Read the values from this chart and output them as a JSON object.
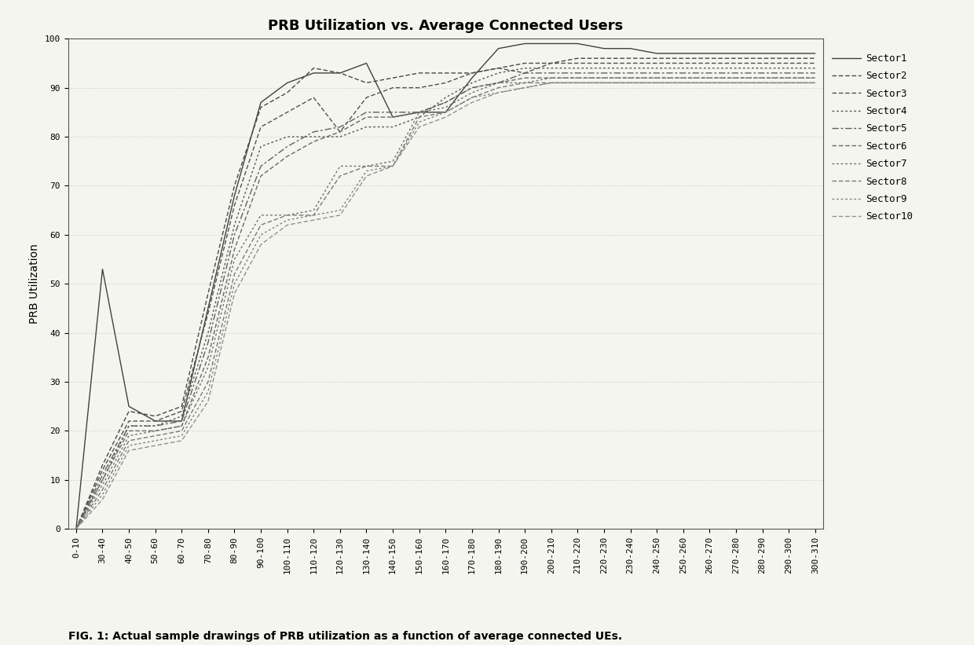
{
  "title": "PRB Utilization vs. Average Connected Users",
  "ylabel": "PRB Utilization",
  "caption": "FIG. 1: Actual sample drawings of PRB utilization as a function of average connected UEs.",
  "x_labels": [
    "0-10",
    "30-40",
    "40-50",
    "50-60",
    "60-70",
    "70-80",
    "80-90",
    "90-100",
    "100-110",
    "110-120",
    "120-130",
    "130-140",
    "140-150",
    "150-160",
    "160-170",
    "170-180",
    "180-190",
    "190-200",
    "200-210",
    "210-220",
    "220-230",
    "230-240",
    "240-250",
    "250-260",
    "260-270",
    "270-280",
    "280-290",
    "290-300",
    "300-310"
  ],
  "ylim": [
    0,
    100
  ],
  "legend_labels": [
    "Sector1",
    "Sector2",
    "Sector3",
    "Sector4",
    "Sector5",
    "Sector6",
    "Sector7",
    "Sector8",
    "Sector9",
    "Sector10"
  ],
  "sectors": {
    "Sector1": [
      0,
      53,
      25,
      22,
      22,
      45,
      68,
      87,
      91,
      93,
      93,
      95,
      84,
      85,
      85,
      92,
      98,
      99,
      99,
      99,
      98,
      98,
      97,
      97,
      97,
      97,
      97,
      97,
      97
    ],
    "Sector2": [
      0,
      13,
      24,
      23,
      25,
      48,
      70,
      86,
      89,
      94,
      93,
      91,
      92,
      93,
      93,
      93,
      94,
      95,
      95,
      96,
      96,
      96,
      96,
      96,
      96,
      96,
      96,
      96,
      96
    ],
    "Sector3": [
      0,
      12,
      22,
      22,
      24,
      44,
      66,
      82,
      85,
      88,
      81,
      88,
      90,
      90,
      91,
      93,
      94,
      93,
      95,
      95,
      95,
      95,
      95,
      95,
      95,
      95,
      95,
      95,
      95
    ],
    "Sector4": [
      0,
      10,
      21,
      21,
      23,
      40,
      62,
      78,
      80,
      80,
      80,
      82,
      82,
      84,
      88,
      91,
      93,
      94,
      94,
      94,
      94,
      94,
      94,
      94,
      94,
      94,
      94,
      94,
      94
    ],
    "Sector5": [
      0,
      11,
      21,
      21,
      22,
      38,
      60,
      74,
      78,
      81,
      82,
      85,
      85,
      85,
      87,
      90,
      91,
      93,
      93,
      93,
      93,
      93,
      93,
      93,
      93,
      93,
      93,
      93,
      93
    ],
    "Sector6": [
      0,
      10,
      20,
      20,
      21,
      35,
      57,
      72,
      76,
      79,
      81,
      84,
      84,
      85,
      87,
      90,
      91,
      92,
      92,
      92,
      92,
      92,
      92,
      92,
      92,
      92,
      92,
      92,
      92
    ],
    "Sector7": [
      0,
      9,
      19,
      20,
      21,
      33,
      55,
      64,
      64,
      65,
      74,
      74,
      75,
      85,
      86,
      89,
      91,
      91,
      92,
      92,
      92,
      92,
      92,
      92,
      92,
      92,
      92,
      92,
      92
    ],
    "Sector8": [
      0,
      8,
      18,
      19,
      20,
      30,
      52,
      62,
      64,
      64,
      72,
      74,
      74,
      84,
      85,
      88,
      90,
      91,
      91,
      91,
      91,
      91,
      91,
      91,
      91,
      91,
      91,
      91,
      91
    ],
    "Sector9": [
      0,
      7,
      17,
      18,
      19,
      28,
      50,
      60,
      63,
      64,
      65,
      73,
      74,
      83,
      85,
      88,
      89,
      90,
      91,
      91,
      91,
      91,
      91,
      91,
      91,
      91,
      91,
      91,
      91
    ],
    "Sector10": [
      0,
      6,
      16,
      17,
      18,
      26,
      48,
      58,
      62,
      63,
      64,
      72,
      74,
      82,
      84,
      87,
      89,
      90,
      91,
      91,
      91,
      91,
      91,
      91,
      91,
      91,
      91,
      91,
      91
    ]
  },
  "background_color": "#f5f5f0",
  "grid_color": "#bbbbbb",
  "title_fontsize": 13,
  "label_fontsize": 10,
  "tick_fontsize": 8,
  "legend_fontsize": 9
}
